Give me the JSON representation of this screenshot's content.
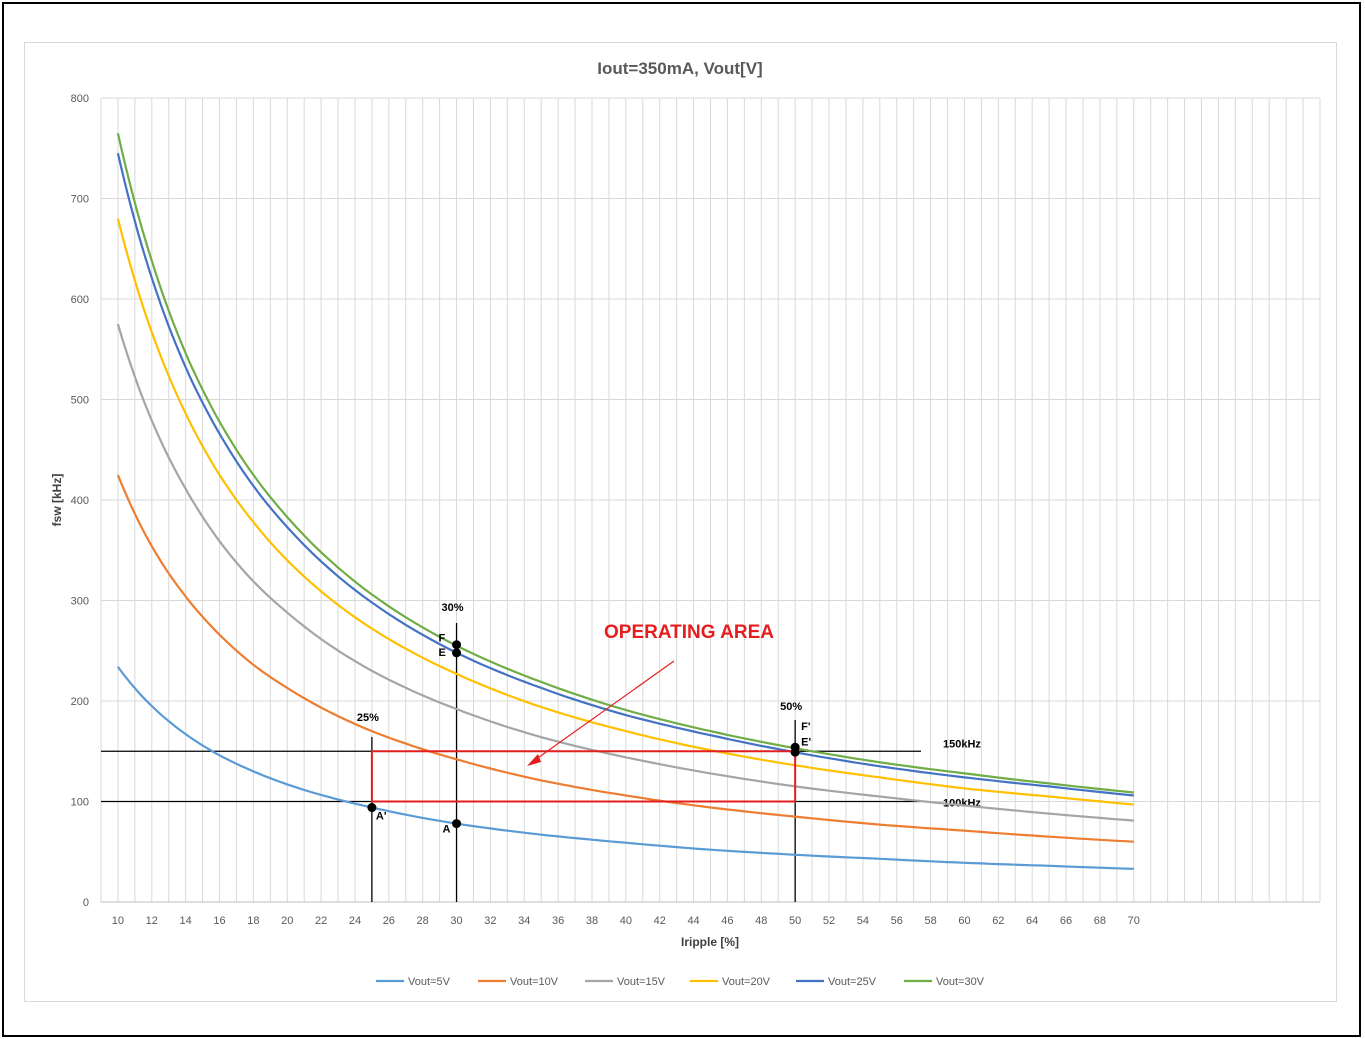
{
  "chart_data": {
    "type": "line",
    "title": "Iout=350mA, Vout[V]",
    "xlabel": "Iripple  [%]",
    "ylabel": "fsw [kHz]",
    "xlim": [
      9,
      81
    ],
    "ylim": [
      0,
      800
    ],
    "x_ticks": [
      10,
      12,
      14,
      16,
      18,
      20,
      22,
      24,
      26,
      28,
      30,
      32,
      34,
      36,
      38,
      40,
      42,
      44,
      46,
      48,
      50,
      52,
      54,
      56,
      58,
      60,
      62,
      64,
      66,
      68,
      70
    ],
    "y_ticks": [
      0,
      100,
      200,
      300,
      400,
      500,
      600,
      700,
      800
    ],
    "grid": true,
    "legend_position": "bottom",
    "series": [
      {
        "name": "Vout=5V",
        "color": "#5b9bd5",
        "x": [
          10,
          12,
          14,
          16,
          18,
          20,
          25,
          30,
          35,
          40,
          45,
          50,
          55,
          60,
          65,
          70
        ],
        "values": [
          234,
          195,
          167,
          146,
          130,
          117,
          94,
          78,
          67,
          59,
          52,
          47,
          43,
          39,
          36,
          33
        ]
      },
      {
        "name": "Vout=10V",
        "color": "#ed7d31",
        "x": [
          10,
          12,
          14,
          16,
          18,
          20,
          25,
          30,
          35,
          40,
          45,
          50,
          55,
          60,
          65,
          70
        ],
        "values": [
          425,
          354,
          304,
          266,
          236,
          213,
          170,
          142,
          121,
          106,
          94,
          85,
          77,
          71,
          65,
          60
        ]
      },
      {
        "name": "Vout=15V",
        "color": "#a5a5a5",
        "x": [
          10,
          12,
          14,
          16,
          18,
          20,
          25,
          30,
          35,
          40,
          45,
          50,
          55,
          60,
          65,
          70
        ],
        "values": [
          575,
          479,
          411,
          359,
          319,
          288,
          230,
          192,
          164,
          144,
          128,
          115,
          105,
          96,
          88,
          81
        ]
      },
      {
        "name": "Vout=20V",
        "color": "#ffc000",
        "x": [
          10,
          12,
          14,
          16,
          18,
          20,
          25,
          30,
          35,
          40,
          45,
          50,
          55,
          60,
          65,
          70
        ],
        "values": [
          680,
          567,
          486,
          425,
          378,
          340,
          272,
          227,
          194,
          170,
          151,
          136,
          124,
          113,
          105,
          97
        ]
      },
      {
        "name": "Vout=25V",
        "color": "#4472c4",
        "x": [
          10,
          12,
          14,
          16,
          18,
          20,
          25,
          30,
          35,
          40,
          45,
          50,
          55,
          60,
          65,
          70
        ],
        "values": [
          745,
          621,
          532,
          466,
          414,
          373,
          298,
          248,
          213,
          186,
          166,
          149,
          135,
          124,
          115,
          106
        ]
      },
      {
        "name": "Vout=30V",
        "color": "#70ad47",
        "x": [
          10,
          12,
          14,
          16,
          18,
          20,
          25,
          30,
          35,
          40,
          45,
          50,
          55,
          60,
          65,
          70
        ],
        "values": [
          765,
          638,
          546,
          478,
          425,
          383,
          306,
          255,
          219,
          191,
          170,
          153,
          139,
          128,
          118,
          109
        ]
      }
    ],
    "reference_lines": {
      "horizontal": [
        {
          "y": 150,
          "label": "150kHz"
        },
        {
          "y": 100,
          "label": "100kHz"
        }
      ],
      "vertical": [
        {
          "x": 25,
          "label": "25%"
        },
        {
          "x": 30,
          "label": "30%"
        },
        {
          "x": 50,
          "label": "50%"
        }
      ]
    },
    "operating_area": {
      "x": [
        25,
        50
      ],
      "y": [
        100,
        150
      ],
      "label": "OPERATING AREA",
      "color": "#e41e1e"
    },
    "points": [
      {
        "label": "A",
        "x": 30,
        "y": 78
      },
      {
        "label": "A'",
        "x": 25,
        "y": 94
      },
      {
        "label": "E",
        "x": 30,
        "y": 248
      },
      {
        "label": "F",
        "x": 30,
        "y": 256
      },
      {
        "label": "E'",
        "x": 50,
        "y": 149
      },
      {
        "label": "F'",
        "x": 50,
        "y": 154
      }
    ]
  }
}
